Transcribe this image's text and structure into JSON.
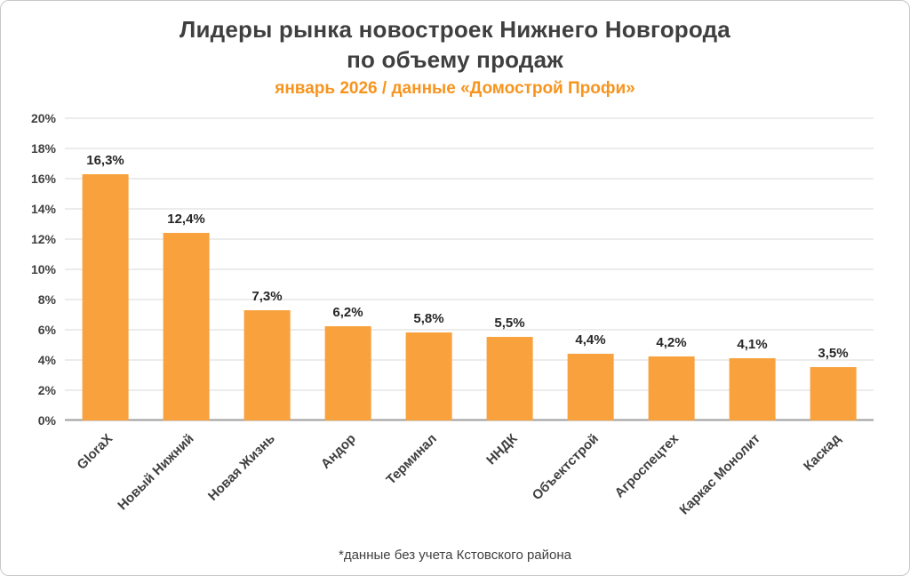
{
  "chart": {
    "title_line1": "Лидеры рынка новостроек Нижнего Новгорода",
    "title_line2": "по объему продаж",
    "subtitle": "январь 2026 / данные «Домострой Профи»",
    "footnote": "*данные без учета Кстовского района"
  },
  "colors": {
    "bar": "#F9A13C",
    "subtitle": "#F7941E",
    "title_text": "#3F3F3F",
    "gridline": "#D9D9D9"
  },
  "chart_data": {
    "type": "bar",
    "title": "Лидеры рынка новостроек Нижнего Новгорода по объему продаж",
    "subtitle": "январь 2026 / данные «Домострой Профи»",
    "categories": [
      "GloraX",
      "Новый Нижний",
      "Новая Жизнь",
      "Андор",
      "Терминал",
      "ННДК",
      "Объектстрой",
      "Агроспецтех",
      "Каркас Монолит",
      "Каскад"
    ],
    "values": [
      16.3,
      12.4,
      7.3,
      6.2,
      5.8,
      5.5,
      4.4,
      4.2,
      4.1,
      3.5
    ],
    "value_labels": [
      "16,3%",
      "12,4%",
      "7,3%",
      "6,2%",
      "5,8%",
      "5,5%",
      "4,4%",
      "4,2%",
      "4,1%",
      "3,5%"
    ],
    "xlabel": "",
    "ylabel": "",
    "ylim": [
      0,
      20
    ],
    "ytick_step": 2,
    "ytick_labels": [
      "0%",
      "2%",
      "4%",
      "6%",
      "8%",
      "10%",
      "12%",
      "14%",
      "16%",
      "18%",
      "20%"
    ],
    "grid": true,
    "legend": "none",
    "bar_color": "#F9A13C",
    "footnote": "*данные без учета Кстовского района"
  }
}
